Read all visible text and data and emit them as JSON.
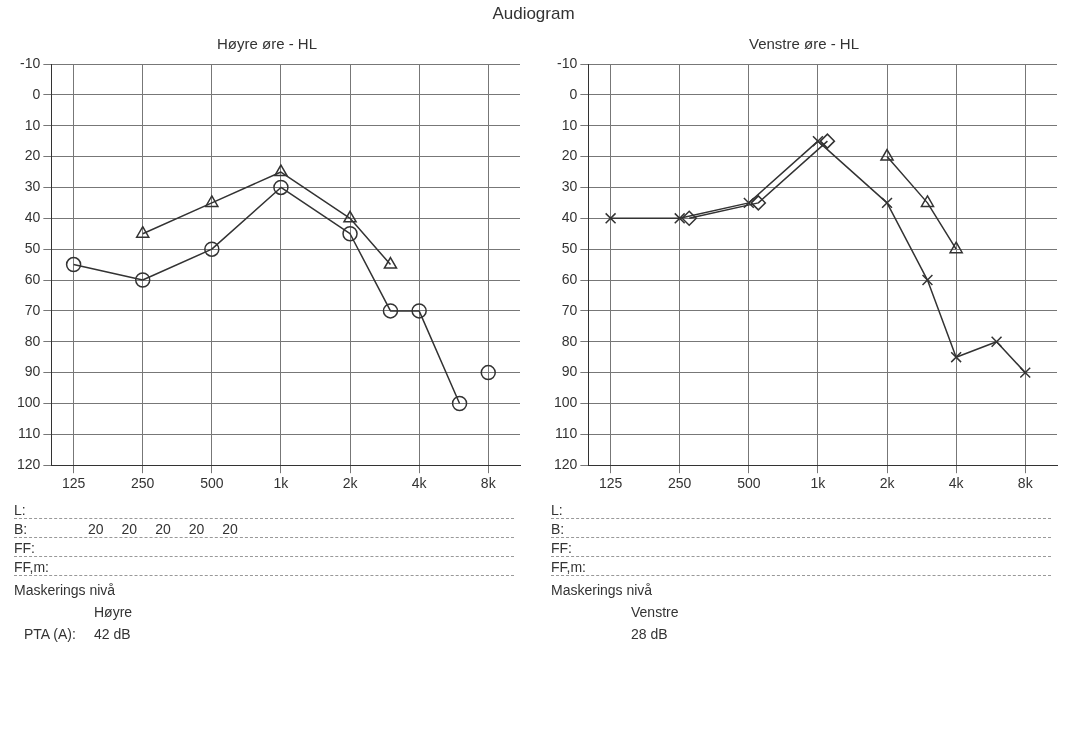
{
  "chart_data": [
    {
      "type": "line",
      "title": "Høyre øre - HL",
      "x": [
        125,
        250,
        500,
        1000,
        2000,
        3000,
        4000,
        6000
      ],
      "series": [
        {
          "type": "line",
          "color": "#333333",
          "marker": "circle",
          "values": [
            55,
            60,
            50,
            30,
            45,
            70,
            70,
            100
          ]
        },
        {
          "type": "line",
          "color": "#333333",
          "marker": "triangle",
          "x": [
            250,
            500,
            1000,
            2000,
            3000
          ],
          "values": [
            45,
            35,
            25,
            40,
            55
          ]
        },
        {
          "type": "scatter",
          "color": "#333333",
          "marker": "circle",
          "x": [
            8000
          ],
          "values": [
            90
          ]
        }
      ],
      "xlim": [
        100,
        11000
      ],
      "xticks": [
        125,
        250,
        500,
        {
          "value": 1000,
          "label": "1k"
        },
        {
          "value": 2000,
          "label": "2k"
        },
        {
          "value": 4000,
          "label": "4k"
        },
        {
          "value": 8000,
          "label": "8k"
        }
      ],
      "ylim": [
        120,
        -10
      ],
      "yticks": [
        -10,
        0,
        10,
        20,
        30,
        40,
        50,
        60,
        70,
        80,
        90,
        100,
        110,
        120
      ],
      "log": "x",
      "grid": true,
      "legend": false,
      "line_style": "solid",
      "annotations": [
        "Audiogram",
        "L:",
        "B:",
        "20",
        "20",
        "20",
        "20",
        "20",
        "FF:",
        "FF,m:",
        "Maskerings nivå",
        "Høyre",
        "PTA (A):",
        "42 dB"
      ]
    },
    {
      "type": "line",
      "title": "Venstre øre - HL",
      "x": [
        125,
        250,
        500,
        1000,
        2000,
        3000,
        4000,
        6000,
        8000
      ],
      "series": [
        {
          "type": "line",
          "color": "#333333",
          "marker": "cross",
          "values": [
            40,
            40,
            35,
            15,
            35,
            60,
            85,
            80,
            90
          ]
        },
        {
          "type": "line",
          "color": "#333333",
          "marker": "diamond",
          "x": [
            275,
            550,
            1100
          ],
          "values": [
            40,
            35,
            15
          ]
        },
        {
          "type": "line",
          "color": "#333333",
          "marker": "triangle",
          "x": [
            2000,
            3000,
            4000
          ],
          "values": [
            20,
            35,
            50
          ]
        }
      ],
      "xlim": [
        100,
        11000
      ],
      "xticks": [
        125,
        250,
        500,
        {
          "value": 1000,
          "label": "1k"
        },
        {
          "value": 2000,
          "label": "2k"
        },
        {
          "value": 4000,
          "label": "4k"
        },
        {
          "value": 8000,
          "label": "8k"
        }
      ],
      "ylim": [
        120,
        -10
      ],
      "yticks": [
        -10,
        0,
        10,
        20,
        30,
        40,
        50,
        60,
        70,
        80,
        90,
        100,
        110,
        120
      ],
      "log": "x",
      "grid": true,
      "legend": false,
      "line_style": "solid",
      "annotations": [
        "L:",
        "B:",
        "FF:",
        "FF,m:",
        "Maskerings nivå",
        "Venstre",
        "28 dB"
      ]
    }
  ]
}
